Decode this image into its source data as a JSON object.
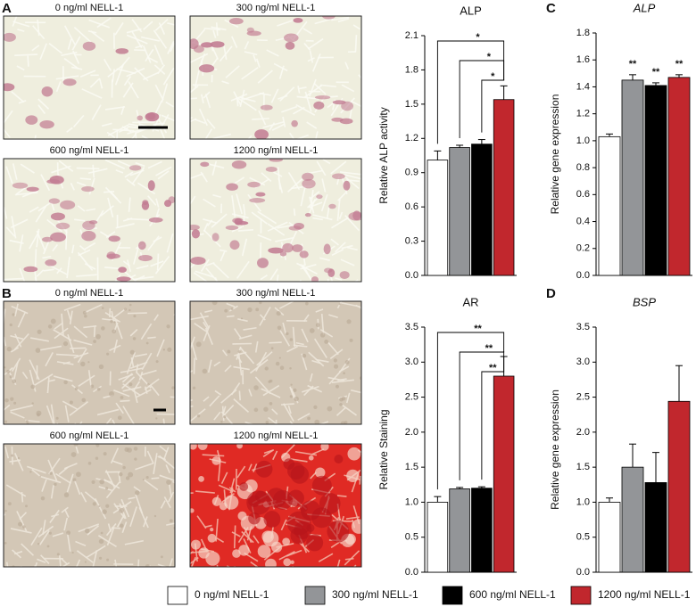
{
  "panel_letters": [
    "A",
    "B",
    "C",
    "D"
  ],
  "images": {
    "A": [
      "0 ng/ml NELL-1",
      "300 ng/ml NELL-1",
      "600 ng/ml NELL-1",
      "1200 ng/ml NELL-1"
    ],
    "B": [
      "0 ng/ml NELL-1",
      "300 ng/ml NELL-1",
      "600 ng/ml NELL-1",
      "1200 ng/ml NELL-1"
    ]
  },
  "legend": [
    {
      "label": "0 ng/ml NELL-1",
      "color": "#ffffff"
    },
    {
      "label": "300 ng/ml NELL-1",
      "color": "#939598"
    },
    {
      "label": "600 ng/ml NELL-1",
      "color": "#000000"
    },
    {
      "label": "1200 ng/ml NELL-1",
      "color": "#c1272d"
    }
  ],
  "chart_data": [
    {
      "type": "bar",
      "title": "ALP",
      "y_label": "Relative ALP activity",
      "categories": [
        null,
        null,
        null,
        null
      ],
      "values": [
        1.01,
        1.12,
        1.15,
        1.54
      ],
      "errors": [
        0.08,
        0.02,
        0.04,
        0.12
      ],
      "ylim": [
        0,
        2.1
      ],
      "yticks": [
        {
          "value": 0,
          "label": "0.0"
        },
        0.3,
        0.6,
        0.9,
        1.2,
        1.5,
        1.8,
        2.1
      ],
      "brackets": [
        "*",
        "*",
        "*"
      ]
    },
    {
      "type": "bar",
      "title": "ALP",
      "title_italic": true,
      "y_label": "Relative gene expression",
      "categories": [
        null,
        null,
        null,
        null
      ],
      "values": [
        1.03,
        1.45,
        1.41,
        1.47
      ],
      "errors": [
        0.02,
        0.04,
        0.02,
        0.02
      ],
      "ylim": [
        0,
        1.8
      ],
      "yticks": [
        {
          "value": 0,
          "label": "0.0"
        },
        0.2,
        0.4,
        0.6,
        0.8,
        {
          "value": 1,
          "label": "1.0"
        },
        1.2,
        1.4,
        1.6,
        1.8
      ],
      "bar_labels": [
        null,
        "**",
        "**",
        "**"
      ]
    },
    {
      "type": "bar",
      "title": "AR",
      "y_label": "Relative Staining",
      "categories": [
        null,
        null,
        null,
        null
      ],
      "values": [
        1.0,
        1.19,
        1.2,
        2.8
      ],
      "errors": [
        0.08,
        0.02,
        0.02,
        0.28
      ],
      "ylim": [
        0,
        3.5
      ],
      "yticks": [
        {
          "value": 0,
          "label": "0.0"
        },
        0.5,
        {
          "value": 1,
          "label": "1.0"
        },
        1.5,
        {
          "value": 2,
          "label": "2.0"
        },
        2.5,
        {
          "value": 3,
          "label": "3.0"
        },
        3.5
      ],
      "brackets": [
        "**",
        "**",
        "**"
      ]
    },
    {
      "type": "bar",
      "title": "BSP",
      "title_italic": true,
      "y_label": "Relative gene expression",
      "categories": [
        null,
        null,
        null,
        null
      ],
      "values": [
        1.0,
        1.5,
        1.28,
        2.44
      ],
      "errors": [
        0.06,
        0.33,
        0.43,
        0.51
      ],
      "ylim": [
        0,
        3.5
      ],
      "yticks": [
        {
          "value": 0,
          "label": "0.0"
        },
        0.5,
        {
          "value": 1,
          "label": "1.0"
        },
        1.5,
        {
          "value": 2,
          "label": "2.0"
        },
        2.5,
        {
          "value": 3,
          "label": "3.0"
        },
        3.5
      ]
    }
  ]
}
